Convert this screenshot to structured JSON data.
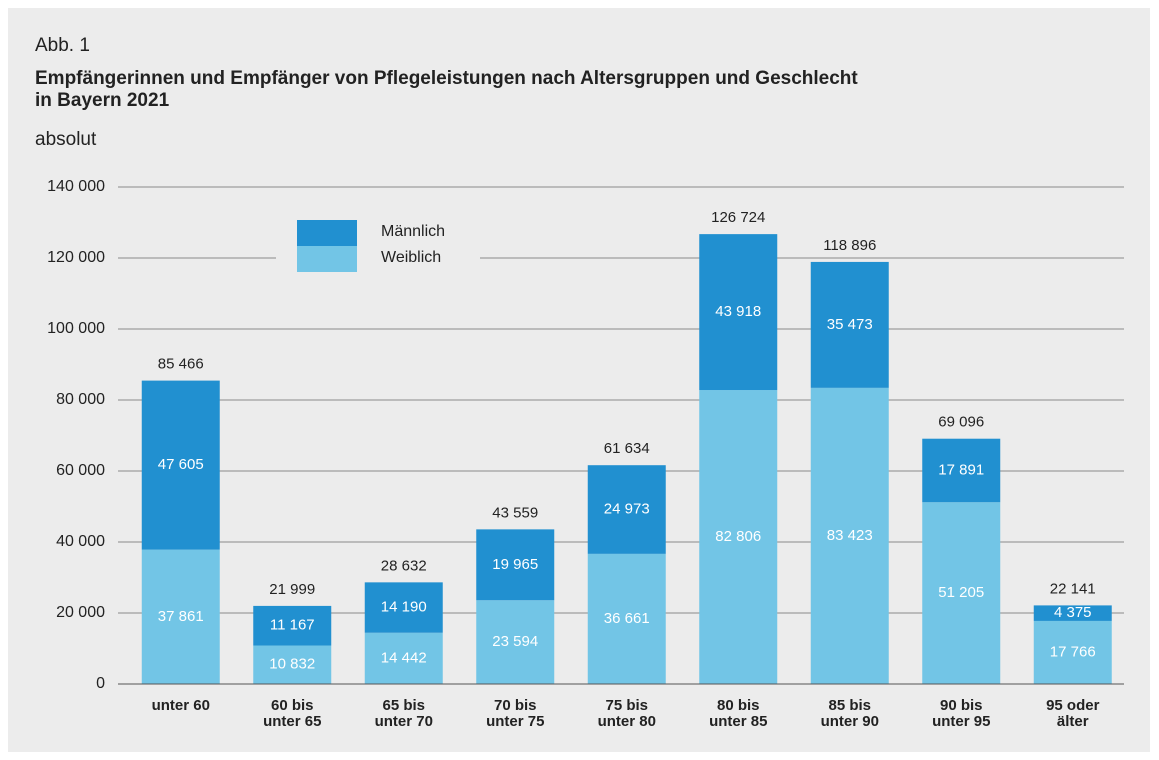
{
  "chart_data": {
    "type": "stacked_bar",
    "figure_label": "Abb. 1",
    "title": "Empfängerinnen und Empfänger von Pflegeleistungen nach Altersgruppen und Geschlecht\nin Bayern 2021",
    "subtitle": "absolut",
    "categories": [
      "unter 60",
      "60 bis\nunter 65",
      "65 bis\nunter 70",
      "70 bis\nunter 75",
      "75 bis\nunter 80",
      "80 bis\nunter 85",
      "85 bis\nunter 90",
      "90 bis\nunter 95",
      "95 oder\nälter"
    ],
    "series": [
      {
        "name": "Weiblich",
        "color": "#72c5e6",
        "values": [
          37861,
          10832,
          14442,
          23594,
          36661,
          82806,
          83423,
          51205,
          17766
        ],
        "value_labels": [
          "37 861",
          "10 832",
          "14 442",
          "23 594",
          "36 661",
          "82 806",
          "83 423",
          "51 205",
          "17 766"
        ]
      },
      {
        "name": "Männlich",
        "color": "#2190d0",
        "values": [
          47605,
          11167,
          14190,
          19965,
          24973,
          43918,
          35473,
          17891,
          4375
        ],
        "value_labels": [
          "47 605",
          "11 167",
          "14 190",
          "19 965",
          "24 973",
          "43 918",
          "35 473",
          "17 891",
          "4 375"
        ]
      }
    ],
    "totals": [
      85466,
      21999,
      28632,
      43559,
      61634,
      126724,
      118896,
      69096,
      22141
    ],
    "total_labels": [
      "85 466",
      "21 999",
      "28 632",
      "43 559",
      "61 634",
      "126 724",
      "118 896",
      "69 096",
      "22 141"
    ],
    "ylim": [
      0,
      140000
    ],
    "yticks": [
      {
        "value": 0,
        "label": "0"
      },
      {
        "value": 20000,
        "label": "20 000"
      },
      {
        "value": 40000,
        "label": "40 000"
      },
      {
        "value": 60000,
        "label": "60 000"
      },
      {
        "value": 80000,
        "label": "80 000"
      },
      {
        "value": 100000,
        "label": "100 000"
      },
      {
        "value": 120000,
        "label": "120 000"
      },
      {
        "value": 140000,
        "label": "140 000"
      }
    ],
    "grid": true
  }
}
